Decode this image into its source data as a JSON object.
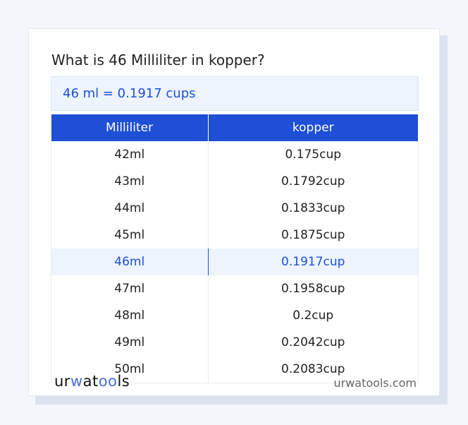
{
  "title": "What is 46 Milliliter in kopper?",
  "result": "46 ml = 0.1917 cups",
  "table": {
    "headers": [
      "Milliliter",
      "kopper"
    ],
    "rows": [
      [
        "42ml",
        "0.175cup"
      ],
      [
        "43ml",
        "0.1792cup"
      ],
      [
        "44ml",
        "0.1833cup"
      ],
      [
        "45ml",
        "0.1875cup"
      ],
      [
        "46ml",
        "0.1917cup"
      ],
      [
        "47ml",
        "0.1958cup"
      ],
      [
        "48ml",
        "0.2cup"
      ],
      [
        "49ml",
        "0.2042cup"
      ],
      [
        "50ml",
        "0.2083cup"
      ]
    ],
    "highlighted_row": 4
  },
  "footer": {
    "logo": "urwatools",
    "site": "urwatools.com"
  },
  "colors": {
    "accent": "#1e4fd6",
    "highlight_bg": "#edf4fe"
  }
}
